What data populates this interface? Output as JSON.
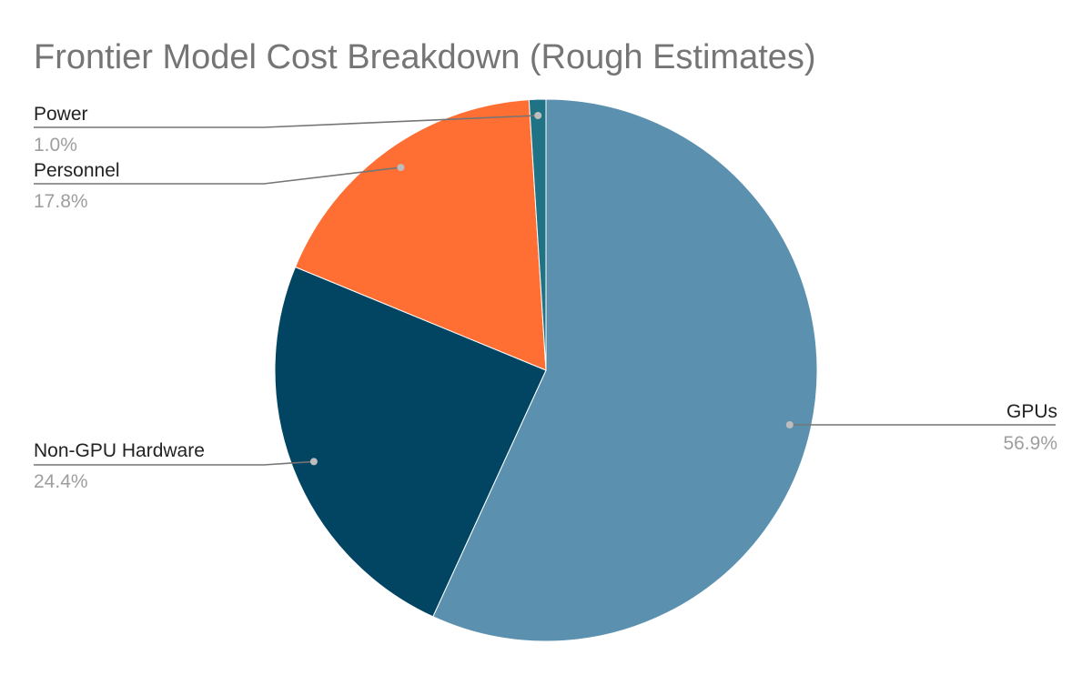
{
  "chart_data": {
    "type": "pie",
    "title": "Frontier Model Cost Breakdown (Rough Estimates)",
    "start_angle_deg": 0,
    "direction": "clockwise",
    "slices": [
      {
        "label": "GPUs",
        "value": 56.9,
        "display": "56.9%",
        "color": "#5b91af"
      },
      {
        "label": "Non-GPU Hardware",
        "value": 24.4,
        "display": "24.4%",
        "color": "#024563"
      },
      {
        "label": "Personnel",
        "value": 17.8,
        "display": "17.8%",
        "color": "#ff6e33"
      },
      {
        "label": "Power",
        "value": 1.0,
        "display": "1.0%",
        "color": "#1f7384"
      }
    ],
    "legend": "none",
    "labels": "outside-with-leader-lines"
  }
}
